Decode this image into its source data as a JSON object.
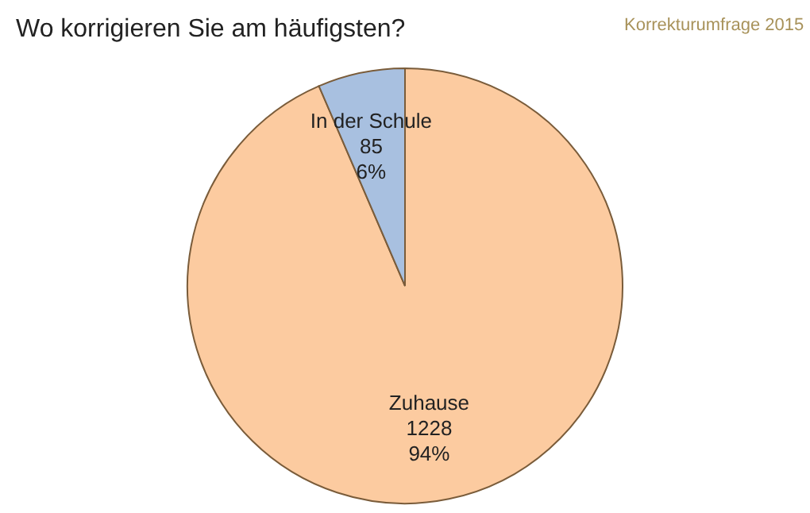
{
  "chart_data": {
    "type": "pie",
    "title": "Wo korrigieren Sie am häufigsten?",
    "annotations": [
      "Korrekturumfrage 2015"
    ],
    "categories": [
      "Zuhause",
      "In der Schule"
    ],
    "values": [
      1228,
      85
    ],
    "colors": [
      "#fccba0",
      "#a8c0e0"
    ],
    "value_labels": [
      "1228\n94%",
      "85\n6%"
    ]
  }
}
